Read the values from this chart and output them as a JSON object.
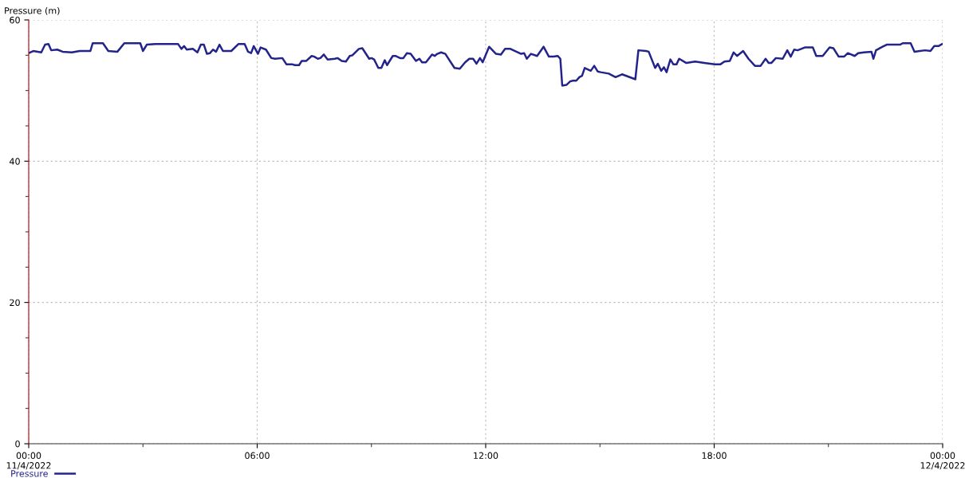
{
  "chart_data": {
    "type": "line",
    "ylabel": "Pressure (m)",
    "xlim": [
      0,
      24
    ],
    "ylim": [
      0,
      60
    ],
    "xticks": [
      {
        "value": 0,
        "label": "00:00\n11/4/2022"
      },
      {
        "value": 3,
        "label": null
      },
      {
        "value": 6,
        "label": "06:00"
      },
      {
        "value": 9,
        "label": null
      },
      {
        "value": 12,
        "label": "12:00"
      },
      {
        "value": 15,
        "label": null
      },
      {
        "value": 18,
        "label": "18:00"
      },
      {
        "value": 21,
        "label": null
      },
      {
        "value": 24,
        "label": "00:00\n12/4/2022"
      }
    ],
    "yticks": [
      0,
      {
        "value": 5,
        "label": null
      },
      {
        "value": 10,
        "label": null
      },
      {
        "value": 15,
        "label": null
      },
      20,
      {
        "value": 25,
        "label": null
      },
      {
        "value": 30,
        "label": null
      },
      {
        "value": 35,
        "label": null
      },
      40,
      {
        "value": 45,
        "label": null
      },
      {
        "value": 50,
        "label": null
      },
      {
        "value": 55,
        "label": null
      },
      60
    ],
    "grid": true,
    "legend": "bottom left",
    "marker": "none",
    "line_style": "solid",
    "series": [
      {
        "name": "Pressure",
        "color": "#23238c",
        "x": [
          0,
          0.12,
          0.33,
          0.43,
          0.52,
          0.59,
          0.75,
          0.89,
          1.13,
          1.34,
          1.62,
          1.68,
          1.95,
          2.09,
          2.33,
          2.51,
          2.77,
          2.93,
          3.0,
          3.1,
          3.33,
          3.92,
          4.01,
          4.08,
          4.15,
          4.31,
          4.43,
          4.52,
          4.6,
          4.68,
          4.76,
          4.84,
          4.92,
          5.01,
          5.1,
          5.32,
          5.51,
          5.67,
          5.76,
          5.84,
          5.91,
          6.02,
          6.09,
          6.23,
          6.37,
          6.47,
          6.66,
          6.77,
          6.93,
          6.99,
          7.1,
          7.17,
          7.29,
          7.43,
          7.5,
          7.59,
          7.66,
          7.75,
          7.85,
          8.04,
          8.11,
          8.22,
          8.33,
          8.43,
          8.5,
          8.67,
          8.76,
          8.94,
          9.0,
          9.07,
          9.18,
          9.26,
          9.35,
          9.41,
          9.56,
          9.63,
          9.75,
          9.84,
          9.93,
          10.03,
          10.17,
          10.26,
          10.33,
          10.43,
          10.59,
          10.66,
          10.73,
          10.83,
          10.94,
          11.18,
          11.32,
          11.46,
          11.57,
          11.67,
          11.76,
          11.85,
          11.92,
          12.09,
          12.27,
          12.4,
          12.51,
          12.65,
          12.93,
          13.01,
          13.08,
          13.19,
          13.35,
          13.52,
          13.66,
          13.78,
          13.89,
          13.96,
          14.01,
          14.12,
          14.22,
          14.29,
          14.38,
          14.46,
          14.53,
          14.6,
          14.76,
          14.85,
          14.94,
          15.02,
          15.23,
          15.41,
          15.58,
          15.93,
          16.01,
          16.21,
          16.28,
          16.45,
          16.52,
          16.61,
          16.68,
          16.75,
          16.85,
          16.93,
          17.01,
          17.08,
          17.27,
          17.5,
          17.74,
          18.02,
          18.16,
          18.27,
          18.41,
          18.51,
          18.6,
          18.76,
          18.9,
          19.07,
          19.22,
          19.35,
          19.43,
          19.5,
          19.62,
          19.8,
          19.92,
          20.01,
          20.1,
          20.19,
          20.38,
          20.59,
          20.68,
          20.85,
          21.03,
          21.13,
          21.27,
          21.41,
          21.51,
          21.69,
          21.78,
          21.93,
          22.13,
          22.18,
          22.25,
          22.42,
          22.53,
          22.88,
          22.95,
          23.16,
          23.26,
          23.4,
          23.54,
          23.68,
          23.78,
          23.89,
          23.99
        ],
        "values": [
          55.3,
          55.6,
          55.4,
          56.5,
          56.6,
          55.7,
          55.8,
          55.5,
          55.4,
          55.6,
          55.6,
          56.7,
          56.7,
          55.6,
          55.5,
          56.7,
          56.7,
          56.7,
          55.6,
          56.5,
          56.6,
          56.6,
          55.9,
          56.3,
          55.8,
          55.9,
          55.4,
          56.5,
          56.5,
          55.2,
          55.3,
          55.8,
          55.5,
          56.5,
          55.6,
          55.6,
          56.6,
          56.6,
          55.5,
          55.3,
          56.3,
          55.2,
          56.1,
          55.8,
          54.6,
          54.5,
          54.6,
          53.7,
          53.7,
          53.6,
          53.6,
          54.2,
          54.2,
          54.9,
          54.8,
          54.5,
          54.6,
          55.1,
          54.4,
          54.5,
          54.6,
          54.2,
          54.1,
          54.9,
          55.0,
          55.9,
          56.0,
          54.5,
          54.6,
          54.4,
          53.2,
          53.2,
          54.3,
          53.6,
          54.9,
          54.9,
          54.6,
          54.6,
          55.3,
          55.2,
          54.2,
          54.5,
          54.0,
          54.0,
          55.1,
          54.9,
          55.2,
          55.4,
          55.2,
          53.2,
          53.1,
          54.0,
          54.5,
          54.5,
          53.8,
          54.6,
          54.0,
          56.2,
          55.2,
          55.1,
          55.9,
          55.9,
          55.2,
          55.3,
          54.5,
          55.2,
          54.9,
          56.2,
          54.8,
          54.8,
          54.9,
          54.5,
          50.7,
          50.8,
          51.3,
          51.4,
          51.4,
          51.9,
          52.1,
          53.2,
          52.8,
          53.5,
          52.7,
          52.6,
          52.4,
          51.9,
          52.3,
          51.6,
          55.7,
          55.6,
          55.5,
          53.2,
          53.8,
          52.8,
          53.3,
          52.6,
          54.4,
          53.7,
          53.7,
          54.5,
          53.9,
          54.1,
          53.9,
          53.7,
          53.7,
          54.1,
          54.2,
          55.4,
          54.9,
          55.6,
          54.5,
          53.5,
          53.5,
          54.5,
          53.9,
          53.9,
          54.6,
          54.5,
          55.7,
          54.8,
          55.8,
          55.7,
          56.1,
          56.1,
          54.9,
          54.9,
          56.1,
          56.0,
          54.8,
          54.8,
          55.3,
          54.9,
          55.3,
          55.4,
          55.5,
          54.5,
          55.7,
          56.2,
          56.5,
          56.5,
          56.7,
          56.7,
          55.5,
          55.6,
          55.7,
          55.6,
          56.3,
          56.3,
          56.6
        ]
      }
    ]
  }
}
